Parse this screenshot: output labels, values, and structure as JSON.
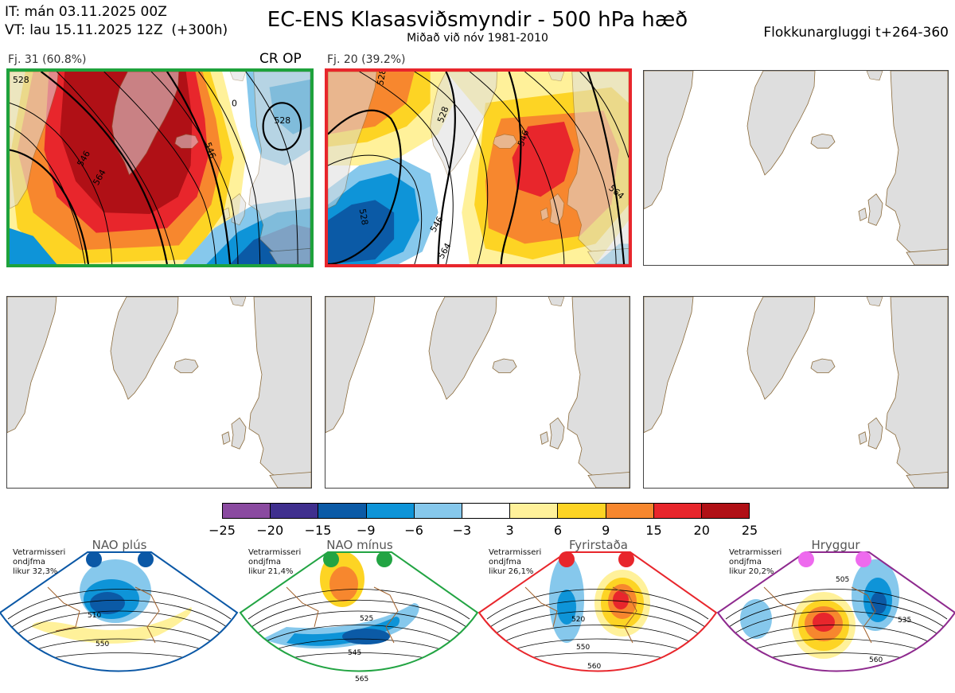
{
  "header": {
    "it_line": "IT: mán 03.11.2025 00Z",
    "vt_line": "VT: lau 15.11.2025 12Z  (+300h)",
    "title": "EC-ENS Klasasviðsmyndir - 500 hPa hæð",
    "subtitle": "Miðað við nóv 1981-2010",
    "window": "Flokkunargluggi t+264-360"
  },
  "clusters": [
    {
      "label": "Fj. 31 (60.8%)",
      "tag": "CR OP",
      "border_color": "#1ea23c",
      "contour_labels": [
        "528",
        "546",
        "564",
        "546",
        "0",
        "528"
      ]
    },
    {
      "label": "Fj. 20 (39.2%)",
      "tag": "",
      "border_color": "#e8262c",
      "contour_labels": [
        "528",
        "528",
        "546",
        "546",
        "564",
        "564",
        "528"
      ]
    }
  ],
  "colorbar": {
    "ticks": [
      "−25",
      "−20",
      "−15",
      "−9",
      "−6",
      "−3",
      "3",
      "6",
      "9",
      "15",
      "20",
      "25"
    ],
    "colors": [
      "#8a4aa0",
      "#3f2f8e",
      "#0b5aa6",
      "#0e94d8",
      "#86c8ec",
      "#ffffff",
      "#fff19a",
      "#fdd424",
      "#f7872e",
      "#e8262c",
      "#b01016"
    ]
  },
  "regimes": [
    {
      "name": "NAO plús",
      "note": [
        "Vetrarmisseri",
        "ondjfma",
        "likur 32,3%"
      ],
      "color": "#0b58a6",
      "contour_labels": [
        "510",
        "550"
      ]
    },
    {
      "name": "NAO mínus",
      "note": [
        "Vetrarmisseri",
        "ondjfma",
        "likur 21,4%"
      ],
      "color": "#22a443",
      "contour_labels": [
        "525",
        "545",
        "565"
      ]
    },
    {
      "name": "Fyrirstaða",
      "note": [
        "Vetrarmisseri",
        "ondjfma",
        "likur 26,1%"
      ],
      "color": "#e8262c",
      "contour_labels": [
        "520",
        "550",
        "560"
      ]
    },
    {
      "name": "Hryggur",
      "note": [
        "Vetrarmisseri",
        "ondjfma",
        "likur 20,2%"
      ],
      "color": "#8e2a8e",
      "contour_labels": [
        "505",
        "535",
        "560"
      ]
    }
  ]
}
